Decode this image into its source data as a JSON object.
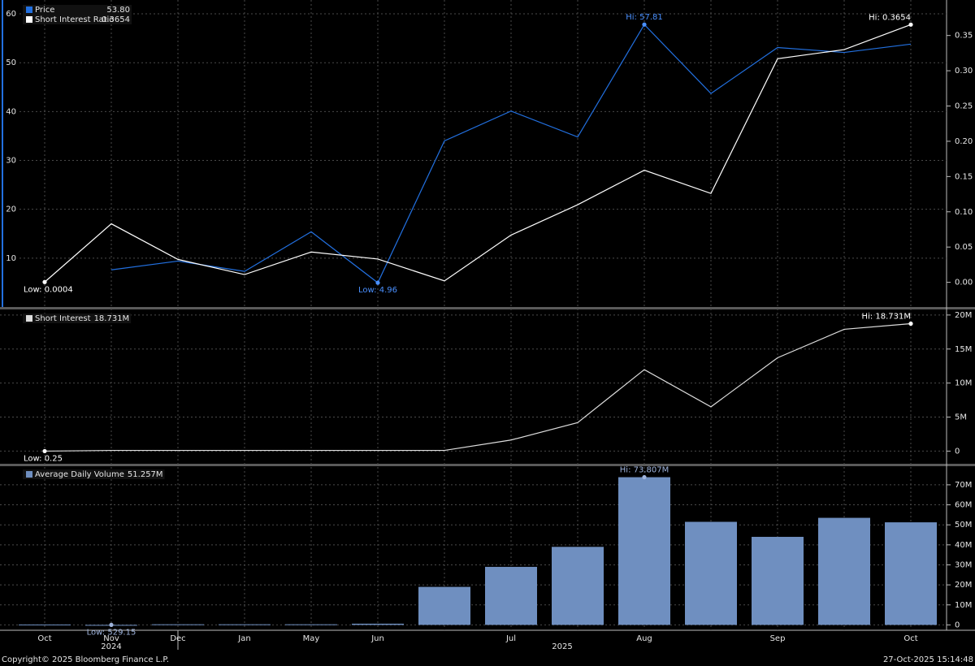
{
  "chart_data": [
    {
      "type": "line",
      "series": [
        {
          "name": "Price",
          "color": "#2270e0",
          "axis": "y",
          "values": [
            null,
            7.6,
            9.4,
            7.3,
            15.4,
            4.96,
            34.0,
            40.1,
            34.8,
            57.81,
            43.7,
            53.1,
            52.1,
            53.8
          ],
          "legend_value": "53.80",
          "hi_label": "Hi: 57.81",
          "low_label": "Low: 4.96"
        },
        {
          "name": "Short Interest Ratio",
          "color": "#ffffff",
          "axis": "y2",
          "values": [
            0.0004,
            0.083,
            0.0325,
            0.011,
            0.043,
            0.033,
            0.002,
            0.067,
            0.11,
            0.159,
            0.126,
            0.317,
            0.33,
            0.3654
          ],
          "legend_value": "0.3654",
          "hi_label": "Hi: 0.3654",
          "low_label": "Low: 0.0004"
        }
      ],
      "ylim": [
        0,
        62.5
      ],
      "yticks": [
        10,
        20,
        30,
        40,
        50,
        60
      ],
      "y2lim": [
        -0.035,
        0.398
      ],
      "y2ticks": [
        {
          "value": 0,
          "label": "0.00"
        },
        {
          "value": 0.05,
          "label": "0.05"
        },
        {
          "value": 0.1,
          "label": "0.10"
        },
        {
          "value": 0.15,
          "label": "0.15"
        },
        {
          "value": 0.2,
          "label": "0.20"
        },
        {
          "value": 0.25,
          "label": "0.25"
        },
        {
          "value": 0.3,
          "label": "0.30"
        },
        {
          "value": 0.35,
          "label": "0.35"
        }
      ],
      "grid": true
    },
    {
      "type": "line",
      "series": [
        {
          "name": "Short Interest",
          "color": "#dddddd",
          "axis": "y2",
          "values": [
            0.25,
            100000,
            100000,
            100000,
            100000,
            100000,
            100000,
            1630000,
            4190000,
            11980000,
            6510000,
            13720000,
            17900000,
            18731000
          ],
          "legend_value": "18.731M",
          "hi_label": "Hi: 18.731M",
          "low_label": "Low: 0.25"
        }
      ],
      "y2lim": [
        -1860000,
        20700000
      ],
      "y2ticks": [
        0,
        {
          "value": 5000000,
          "label": "5M"
        },
        {
          "value": 10000000,
          "label": "10M"
        },
        {
          "value": 15000000,
          "label": "15M"
        },
        {
          "value": 20000000,
          "label": "20M"
        }
      ],
      "grid": true
    },
    {
      "type": "bar",
      "categories": [
        "Oct",
        "Nov",
        "Dec",
        "Jan",
        "May",
        "Jun",
        null,
        "Jul",
        null,
        "Aug",
        null,
        "Sep",
        null,
        "Oct"
      ],
      "years": [
        "2024",
        "2025"
      ],
      "series": [
        {
          "name": "Average Daily Volume",
          "color": "#6f8fc0",
          "axis": "y2",
          "values": [
            200000,
            529.15,
            300000,
            300000,
            300000,
            600000,
            19000000,
            29000000,
            39000000,
            73807000,
            51500000,
            44000000,
            53500000,
            51257000
          ],
          "legend_value": "51.257M",
          "hi_label": "Hi: 73.807M",
          "low_label": "Low: 529.15"
        }
      ],
      "y2lim": [
        -2680000,
        79300000
      ],
      "y2ticks": [
        0,
        {
          "value": 10000000,
          "label": "10M"
        },
        {
          "value": 20000000,
          "label": "20M"
        },
        {
          "value": 30000000,
          "label": "30M"
        },
        {
          "value": 40000000,
          "label": "40M"
        },
        {
          "value": 50000000,
          "label": "50M"
        },
        {
          "value": 60000000,
          "label": "60M"
        },
        {
          "value": 70000000,
          "label": "70M"
        }
      ],
      "grid": true
    }
  ],
  "footer": {
    "copyright": "Copyright© 2025 Bloomberg Finance L.P.",
    "timestamp": "27-Oct-2025 15:14:48"
  }
}
